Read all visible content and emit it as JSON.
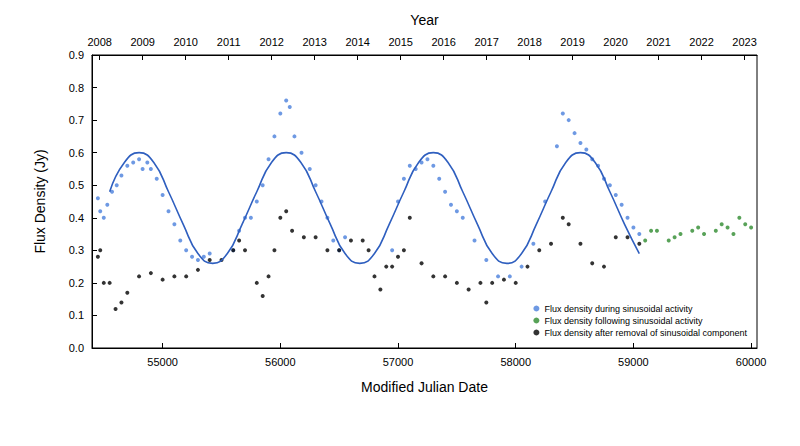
{
  "chart_data": {
    "type": "scatter",
    "xlabel": "Modified Julian Date",
    "x2label": "Year",
    "ylabel": "Flux Density (Jy)",
    "xlim": [
      54400,
      60050
    ],
    "xticks": [
      55000,
      56000,
      57000,
      58000,
      59000,
      60000
    ],
    "x2lim": [
      2007.82,
      2023.29
    ],
    "x2ticks": [
      2008,
      2009,
      2010,
      2011,
      2012,
      2013,
      2014,
      2015,
      2016,
      2017,
      2018,
      2019,
      2020,
      2021,
      2022,
      2023
    ],
    "ylim": [
      0,
      0.9
    ],
    "yticks": [
      {
        "value": 0,
        "label": "0.0"
      },
      0.1,
      0.2,
      0.3,
      0.4,
      0.5,
      0.6,
      0.7,
      0.8,
      0.9
    ],
    "grid": false,
    "legend": "lower right",
    "series": [
      {
        "name": "Flux density during sinusoidal activity",
        "type": "scatter",
        "color": "#4a7fdc",
        "marker": "circle",
        "x": [
          54450,
          54470,
          54500,
          54530,
          54570,
          54610,
          54650,
          54700,
          54750,
          54800,
          54830,
          54870,
          54900,
          54950,
          55000,
          55050,
          55100,
          55150,
          55200,
          55250,
          55300,
          55350,
          55400,
          55600,
          55650,
          55700,
          55750,
          55800,
          55850,
          55900,
          55950,
          56000,
          56050,
          56080,
          56120,
          56180,
          56250,
          56300,
          56350,
          56400,
          56450,
          56500,
          56550,
          56950,
          57000,
          57050,
          57100,
          57150,
          57200,
          57250,
          57300,
          57350,
          57400,
          57450,
          57500,
          57550,
          57650,
          57750,
          57850,
          57950,
          58050,
          58150,
          58250,
          58350,
          58400,
          58450,
          58500,
          58550,
          58600,
          58650,
          58700,
          58750,
          58800,
          58850,
          58900,
          58950,
          59000,
          59050
        ],
        "values": [
          0.46,
          0.42,
          0.4,
          0.44,
          0.48,
          0.5,
          0.53,
          0.56,
          0.57,
          0.58,
          0.55,
          0.57,
          0.55,
          0.52,
          0.47,
          0.42,
          0.38,
          0.33,
          0.3,
          0.28,
          0.27,
          0.28,
          0.29,
          0.3,
          0.36,
          0.4,
          0.4,
          0.45,
          0.5,
          0.58,
          0.65,
          0.72,
          0.76,
          0.74,
          0.65,
          0.6,
          0.55,
          0.5,
          0.45,
          0.4,
          0.33,
          0.3,
          0.34,
          0.3,
          0.45,
          0.52,
          0.56,
          0.55,
          0.57,
          0.58,
          0.56,
          0.52,
          0.48,
          0.44,
          0.42,
          0.4,
          0.33,
          0.27,
          0.22,
          0.22,
          0.25,
          0.32,
          0.45,
          0.62,
          0.72,
          0.7,
          0.66,
          0.63,
          0.61,
          0.58,
          0.56,
          0.52,
          0.5,
          0.47,
          0.44,
          0.4,
          0.37,
          0.35
        ]
      },
      {
        "name": "Flux density following sinusoidal activity",
        "type": "scatter",
        "color": "#2e8b2e",
        "marker": "circle",
        "x": [
          59100,
          59150,
          59200,
          59300,
          59350,
          59400,
          59500,
          59550,
          59600,
          59700,
          59750,
          59800,
          59850,
          59900,
          59950,
          60000
        ],
        "values": [
          0.33,
          0.36,
          0.36,
          0.33,
          0.34,
          0.35,
          0.36,
          0.37,
          0.35,
          0.36,
          0.38,
          0.37,
          0.35,
          0.4,
          0.38,
          0.37
        ]
      },
      {
        "name": "Flux density after removal of sinusoidal component",
        "type": "scatter",
        "color": "#000000",
        "marker": "circle",
        "x": [
          54450,
          54470,
          54500,
          54550,
          54600,
          54650,
          54700,
          54800,
          54900,
          55000,
          55100,
          55200,
          55300,
          55400,
          55500,
          55600,
          55650,
          55700,
          55800,
          55850,
          55900,
          55950,
          56000,
          56050,
          56100,
          56200,
          56300,
          56400,
          56500,
          56600,
          56700,
          56750,
          56800,
          56850,
          56900,
          56950,
          57000,
          57050,
          57100,
          57200,
          57300,
          57400,
          57500,
          57600,
          57700,
          57750,
          57800,
          57900,
          58000,
          58100,
          58200,
          58300,
          58400,
          58450,
          58550,
          58650,
          58750,
          58850,
          58950,
          59050
        ],
        "values": [
          0.28,
          0.3,
          0.2,
          0.2,
          0.12,
          0.14,
          0.17,
          0.22,
          0.23,
          0.21,
          0.22,
          0.22,
          0.24,
          0.27,
          0.27,
          0.3,
          0.33,
          0.3,
          0.2,
          0.16,
          0.22,
          0.3,
          0.4,
          0.42,
          0.36,
          0.34,
          0.34,
          0.3,
          0.3,
          0.33,
          0.33,
          0.3,
          0.22,
          0.18,
          0.25,
          0.25,
          0.28,
          0.3,
          0.4,
          0.26,
          0.22,
          0.22,
          0.2,
          0.18,
          0.2,
          0.14,
          0.2,
          0.21,
          0.2,
          0.25,
          0.3,
          0.32,
          0.4,
          0.38,
          0.32,
          0.26,
          0.25,
          0.34,
          0.34,
          0.32
        ]
      },
      {
        "type": "line",
        "color": "#2f5fbf",
        "line_style": "solid",
        "x": [
          54550,
          54675,
          54800,
          54925,
          55050,
          55175,
          55300,
          55425,
          55550,
          55675,
          55800,
          55925,
          56050,
          56175,
          56300,
          56425,
          56550,
          56675,
          56800,
          56925,
          57050,
          57175,
          57300,
          57425,
          57550,
          57675,
          57800,
          57925,
          58050,
          58175,
          58300,
          58425,
          58550,
          58675,
          58800,
          58925,
          59050
        ],
        "values": [
          0.48,
          0.57,
          0.6,
          0.57,
          0.48,
          0.38,
          0.29,
          0.26,
          0.29,
          0.38,
          0.48,
          0.57,
          0.6,
          0.57,
          0.48,
          0.38,
          0.29,
          0.26,
          0.29,
          0.38,
          0.48,
          0.57,
          0.6,
          0.57,
          0.48,
          0.38,
          0.29,
          0.26,
          0.29,
          0.38,
          0.48,
          0.57,
          0.6,
          0.57,
          0.48,
          0.38,
          0.29
        ]
      }
    ]
  }
}
